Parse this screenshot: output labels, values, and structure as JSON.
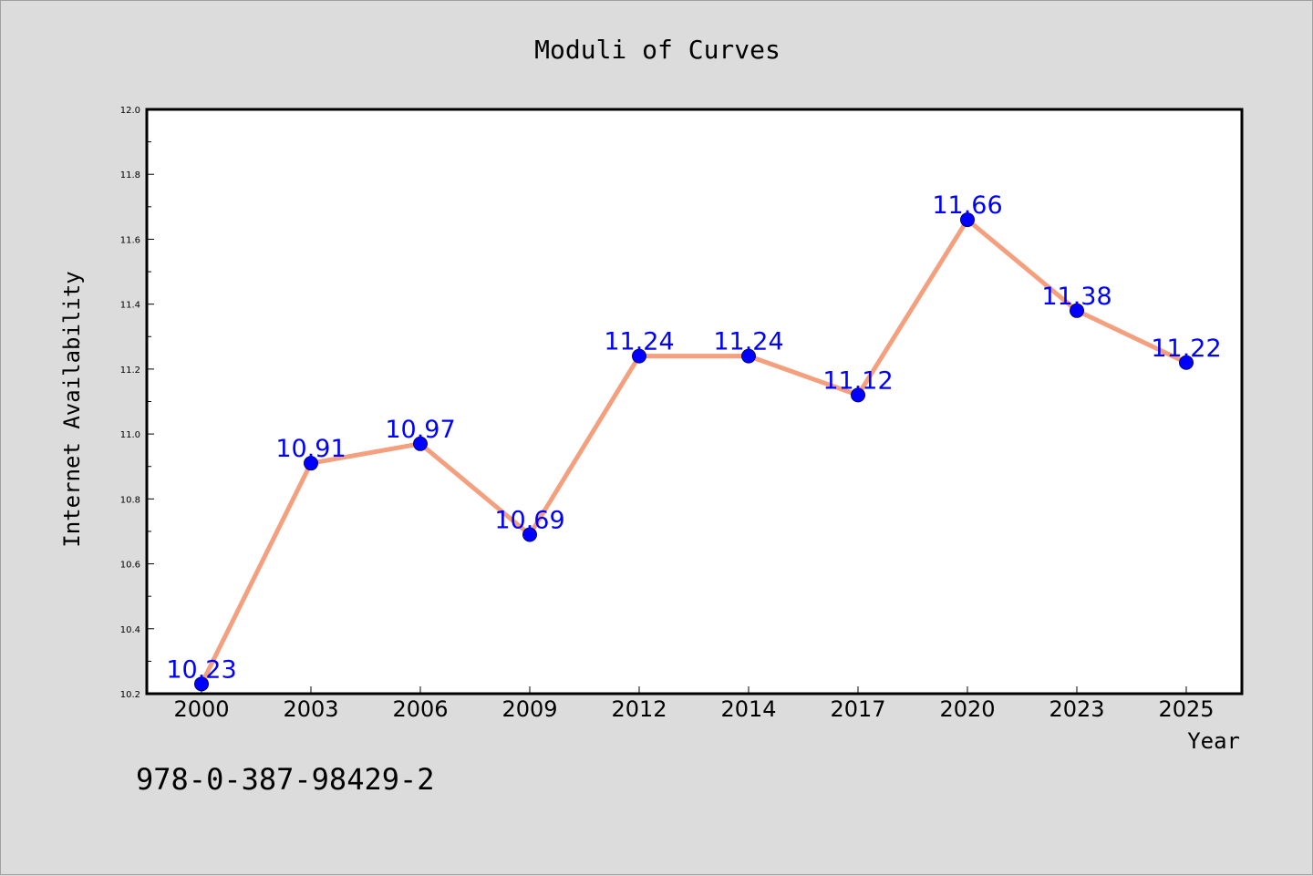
{
  "chart_data": {
    "type": "line",
    "title": "Moduli of Curves",
    "xlabel": "Year",
    "ylabel": "Internet Availability",
    "categories": [
      "2000",
      "2003",
      "2006",
      "2009",
      "2012",
      "2014",
      "2017",
      "2020",
      "2023",
      "2025"
    ],
    "series": [
      {
        "values": [
          10.23,
          10.91,
          10.97,
          10.69,
          11.24,
          11.24,
          11.12,
          11.66,
          11.38,
          11.22
        ],
        "data_labels": [
          "10.23",
          "10.91",
          "10.97",
          "10.69",
          "11.24",
          "11.24",
          "11.12",
          "11.66",
          "11.38",
          "11.22"
        ]
      }
    ],
    "ylim": [
      10.2,
      12.0
    ],
    "yticks": [
      10.2,
      10.4,
      10.6,
      10.8,
      11.0,
      11.2,
      11.4,
      11.6,
      11.8,
      12.0
    ],
    "ytick_labels": [
      "10.2",
      "10.4",
      "10.6",
      "10.8",
      "11.0",
      "11.2",
      "11.4",
      "11.6",
      "11.8",
      "12.0"
    ],
    "grid": false,
    "colors": {
      "line": "#f4a07e",
      "marker_fill": "#0000ff",
      "marker_edge": "#000080",
      "data_label": "#0000ff",
      "background": "#dcdcdc",
      "plot_background": "#ffffff"
    }
  },
  "annotation": "978-0-387-98429-2"
}
